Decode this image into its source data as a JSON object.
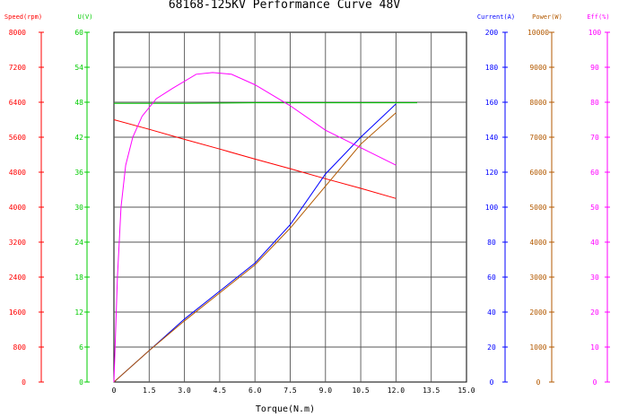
{
  "chart_data": {
    "type": "line",
    "title": "68168-125KV Performance Curve 48V",
    "xlabel": "Torque(N.m)",
    "xlim": [
      0,
      15
    ],
    "x_ticks": [
      "0",
      "1.5",
      "3.0",
      "4.5",
      "6.0",
      "7.5",
      "9.0",
      "10.5",
      "12.0",
      "13.5",
      "15.0"
    ],
    "grid": true,
    "axes": [
      {
        "id": "speed",
        "label": "Speed(rpm)",
        "side": "left",
        "color": "#ff0000",
        "min": 0,
        "max": 8000,
        "ticks": [
          "0",
          "800",
          "1600",
          "2400",
          "3200",
          "4000",
          "4800",
          "5600",
          "6400",
          "7200",
          "8000"
        ]
      },
      {
        "id": "voltage",
        "label": "U(V)",
        "side": "left",
        "color": "#00cc00",
        "min": 0,
        "max": 60,
        "ticks": [
          "0",
          "6",
          "12",
          "18",
          "24",
          "30",
          "36",
          "42",
          "48",
          "54",
          "60"
        ]
      },
      {
        "id": "current",
        "label": "Current(A)",
        "side": "right",
        "color": "#0000ff",
        "min": 0,
        "max": 200,
        "ticks": [
          "0",
          "20",
          "40",
          "60",
          "80",
          "100",
          "120",
          "140",
          "160",
          "180",
          "200"
        ]
      },
      {
        "id": "power",
        "label": "Power(W)",
        "side": "right",
        "color": "#b35900",
        "min": 0,
        "max": 10000,
        "ticks": [
          "0",
          "1000",
          "2000",
          "3000",
          "4000",
          "5000",
          "6000",
          "7000",
          "8000",
          "9000",
          "10000"
        ]
      },
      {
        "id": "eff",
        "label": "Eff(%)",
        "side": "right",
        "color": "#ff00ff",
        "min": 0,
        "max": 100,
        "ticks": [
          "0",
          "10",
          "20",
          "30",
          "40",
          "50",
          "60",
          "70",
          "80",
          "90",
          "100"
        ]
      }
    ],
    "series": [
      {
        "axis": "speed",
        "color": "#ff0000",
        "x": [
          0,
          1.5,
          3,
          4.5,
          6,
          7.5,
          9,
          10.5,
          12
        ],
        "y": [
          6000,
          5780,
          5550,
          5330,
          5100,
          4880,
          4650,
          4430,
          4200
        ]
      },
      {
        "axis": "voltage",
        "color": "#00cc00",
        "x": [
          0,
          3,
          6,
          9,
          12,
          12.9
        ],
        "y": [
          47.8,
          47.8,
          47.9,
          47.9,
          47.9,
          47.9
        ]
      },
      {
        "axis": "current",
        "color": "#0000ff",
        "x": [
          0,
          1.5,
          3,
          4.5,
          6,
          7.5,
          9,
          10.5,
          12
        ],
        "y": [
          0,
          18,
          36,
          52,
          68,
          90,
          119,
          140,
          159
        ]
      },
      {
        "axis": "power",
        "color": "#b35900",
        "x": [
          0,
          1.5,
          3,
          4.5,
          6,
          7.5,
          9,
          10.5,
          12
        ],
        "y": [
          0,
          900,
          1750,
          2550,
          3350,
          4400,
          5600,
          6800,
          7700
        ]
      },
      {
        "axis": "eff",
        "color": "#ff00ff",
        "x": [
          0,
          0.15,
          0.3,
          0.5,
          0.8,
          1.2,
          1.8,
          2.5,
          3.5,
          4.2,
          5,
          6,
          7.5,
          9,
          10.5,
          12
        ],
        "y": [
          0,
          30,
          50,
          62,
          70,
          76,
          81,
          84,
          88,
          88.5,
          88,
          85,
          79,
          72,
          67,
          62
        ]
      }
    ]
  }
}
